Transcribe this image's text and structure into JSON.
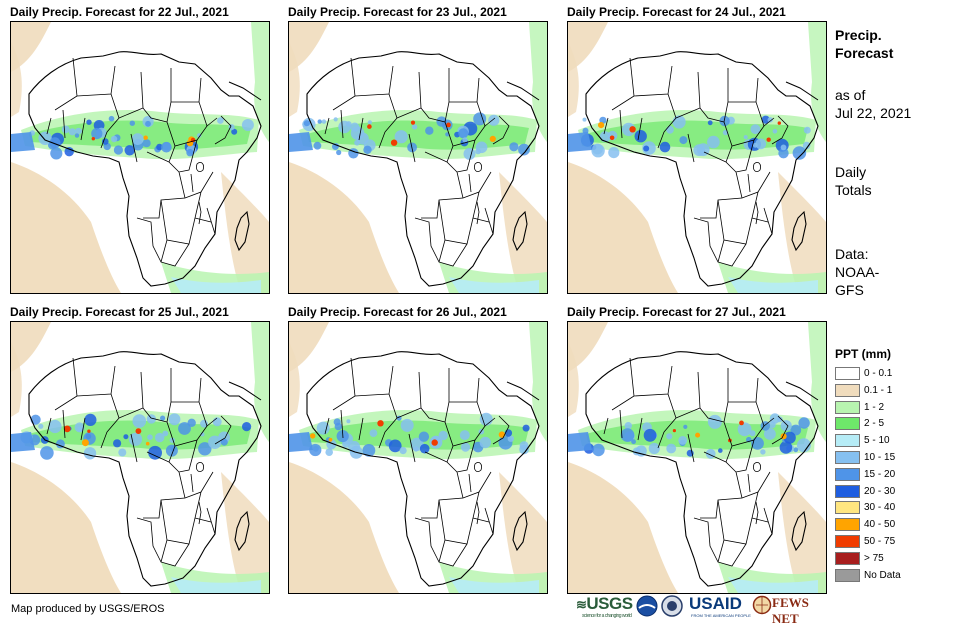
{
  "panels": [
    {
      "title": "Daily Precip. Forecast for 22 Jul., 2021"
    },
    {
      "title": "Daily Precip. Forecast for 23 Jul., 2021"
    },
    {
      "title": "Daily Precip. Forecast for 24 Jul., 2021"
    },
    {
      "title": "Daily Precip. Forecast for 25 Jul., 2021"
    },
    {
      "title": "Daily Precip. Forecast for 26 Jul., 2021"
    },
    {
      "title": "Daily Precip. Forecast for 27 Jul., 2021"
    }
  ],
  "sidebar": {
    "heading_line1": "Precip.",
    "heading_line2": "Forecast",
    "asof_line1": "as of",
    "asof_line2": "Jul 22, 2021",
    "daily_line1": "Daily",
    "daily_line2": "Totals",
    "data_line1": "Data:",
    "data_line2": "NOAA-",
    "data_line3": "GFS"
  },
  "legend": {
    "title": "PPT (mm)",
    "items": [
      {
        "label": "0 - 0.1",
        "color": "#ffffff"
      },
      {
        "label": "0.1 - 1",
        "color": "#f0dcbd"
      },
      {
        "label": "1 - 2",
        "color": "#b8f4b0"
      },
      {
        "label": "2 - 5",
        "color": "#6ee86a"
      },
      {
        "label": "5 - 10",
        "color": "#b6ecf6"
      },
      {
        "label": "10 - 15",
        "color": "#86c0f0"
      },
      {
        "label": "15 - 20",
        "color": "#4f94e8"
      },
      {
        "label": "20 - 30",
        "color": "#1f5ee0"
      },
      {
        "label": "30 - 40",
        "color": "#ffe680"
      },
      {
        "label": "40 - 50",
        "color": "#ffa400"
      },
      {
        "label": "50 - 75",
        "color": "#f03c00"
      },
      {
        "label": "> 75",
        "color": "#a81e1e"
      },
      {
        "label": "No Data",
        "color": "#9a9a9a"
      }
    ]
  },
  "footer": {
    "credit": "Map produced by USGS/EROS",
    "usgs_logo": "USGS",
    "usgs_tagline": "science for a changing world",
    "usaid_logo": "USAID",
    "usaid_tagline": "FROM THE AMERICAN PEOPLE",
    "fews_logo": "FEWS NET"
  }
}
